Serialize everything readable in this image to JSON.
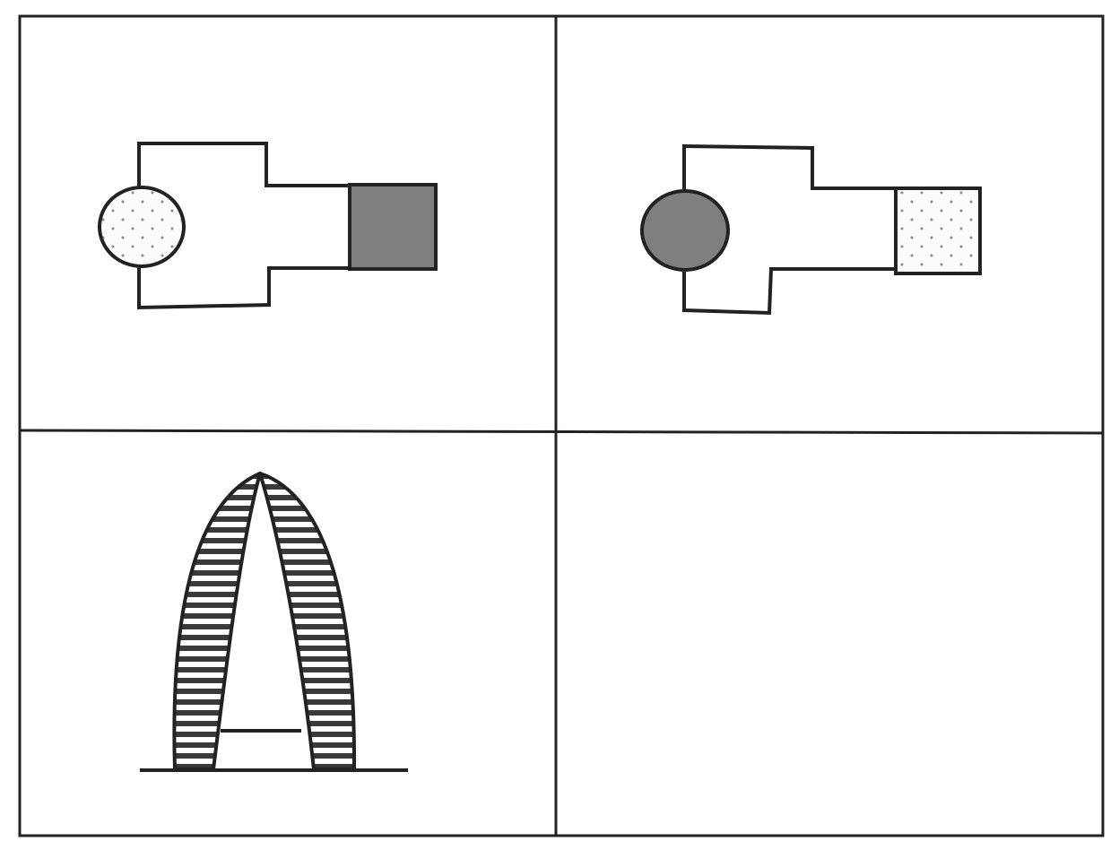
{
  "figure": {
    "panels": [
      {
        "id": "top-left",
        "shape": "cross-shaped body",
        "circle_fill": "dotted",
        "square_fill": "solid-gray"
      },
      {
        "id": "top-right",
        "shape": "cross-shaped body",
        "circle_fill": "solid-gray",
        "square_fill": "dotted"
      },
      {
        "id": "bottom-left",
        "shape": "arch",
        "arch_fill": "horizontal-stripes"
      },
      {
        "id": "bottom-right",
        "shape": "empty"
      }
    ]
  },
  "colors": {
    "line": "#222222",
    "solid_gray": "#7f7f7f",
    "dot": "#8a8a8a",
    "background": "#ffffff"
  }
}
